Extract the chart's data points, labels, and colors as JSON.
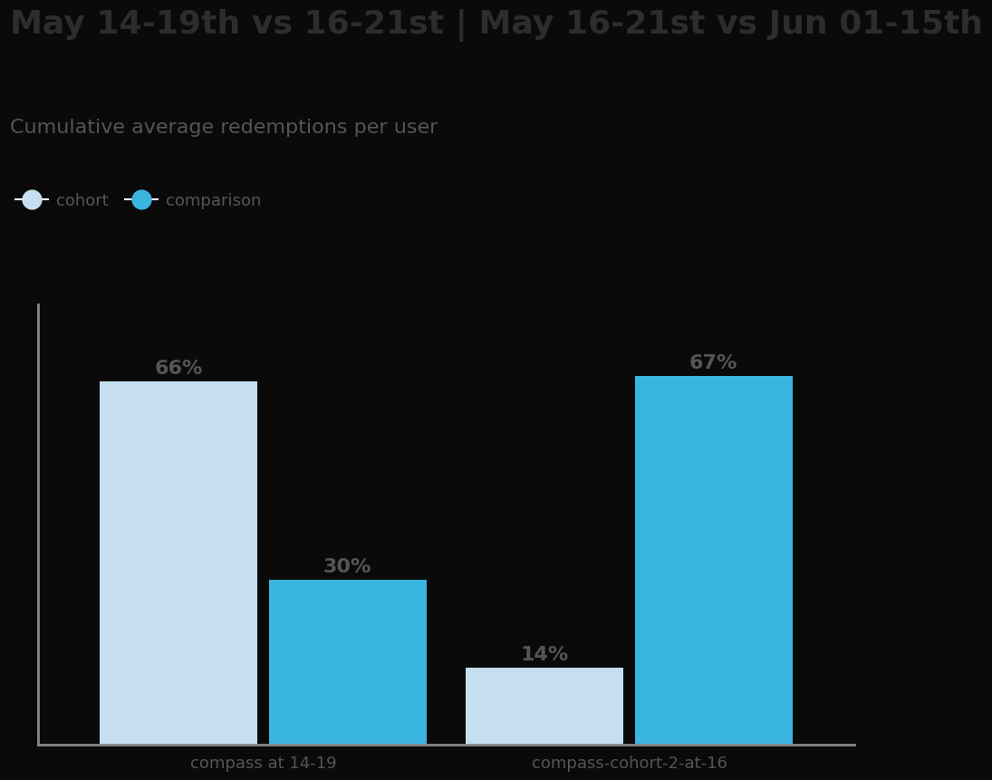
{
  "title": "May 14-19th vs 16-21st | May 16-21st vs Jun 01-15th",
  "subtitle": "Cumulative average redemptions per user",
  "legend_labels": [
    "cohort",
    "comparison"
  ],
  "legend_colors": [
    "#c5dff0",
    "#3ab5e0"
  ],
  "groups": [
    "compass at 14-19",
    "compass-cohort-2-at-16"
  ],
  "bar1_values": [
    66,
    14
  ],
  "bar2_values": [
    30,
    67
  ],
  "bar1_labels": [
    "66%",
    "14%"
  ],
  "bar2_labels": [
    "30%",
    "67%"
  ],
  "bar1_color": "#c5dff0",
  "bar2_color": "#3ab5e0",
  "label_color": "#555555",
  "axis_color": "#888888",
  "title_color": "#2d2d2d",
  "subtitle_color": "#555555",
  "bg_color": "#0a0a0a",
  "plot_bg_color": "#0a0a0a",
  "bar_width": 0.28,
  "ylim": [
    0,
    80
  ],
  "title_fontsize": 26,
  "subtitle_fontsize": 16,
  "tick_fontsize": 13,
  "label_fontsize": 16,
  "legend_fontsize": 13
}
